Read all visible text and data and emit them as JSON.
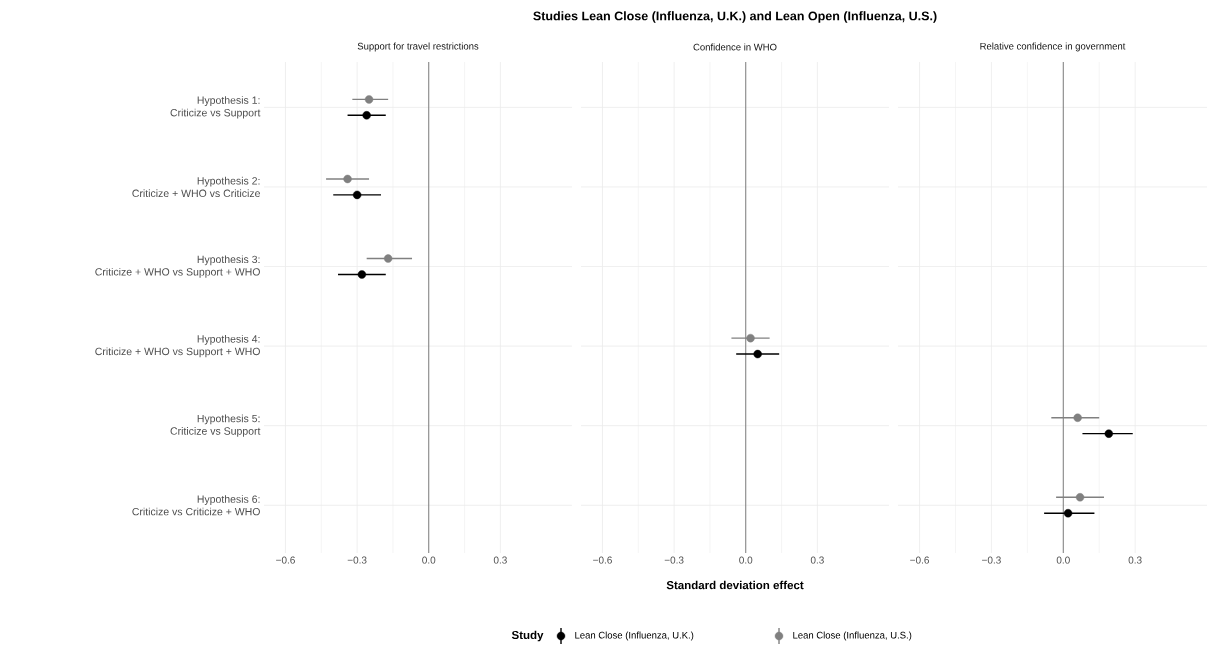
{
  "chart_data": [
    {
      "type": "scatter",
      "orientation": "horizontal",
      "subtitle": "Support for travel restrictions",
      "categories": [
        "Hypothesis 1:\nCriticize vs Support",
        "Hypothesis 2:\nCriticize + WHO vs Criticize",
        "Hypothesis 3:\nCriticize + WHO vs Support + WHO",
        "Hypothesis 4:\nCriticize + WHO vs Support + WHO",
        "Hypothesis 5:\nCriticize vs Support",
        "Hypothesis 6:\nCriticize vs Criticize + WHO"
      ],
      "series": [
        {
          "color": "#000000",
          "values": [
            -0.26,
            -0.3,
            -0.28,
            null,
            null,
            null
          ],
          "errors": [
            [
              -0.34,
              -0.18
            ],
            [
              -0.4,
              -0.2
            ],
            [
              -0.38,
              -0.18
            ],
            null,
            null,
            null
          ]
        },
        {
          "color": "#808080",
          "values": [
            -0.25,
            -0.34,
            -0.17,
            null,
            null,
            null
          ],
          "errors": [
            [
              -0.32,
              -0.17
            ],
            [
              -0.43,
              -0.25
            ],
            [
              -0.26,
              -0.07
            ],
            null,
            null,
            null
          ]
        }
      ],
      "xlim": [
        -0.69,
        0.6
      ],
      "xticks": [
        {
          "value": -0.6,
          "label": "−0.6"
        },
        {
          "value": -0.3,
          "label": "−0.3"
        },
        {
          "value": 0,
          "label": "0.0"
        },
        {
          "value": 0.3,
          "label": "0.3"
        }
      ],
      "ref_lines": [
        {
          "axis": "x",
          "value": 0,
          "color": "#333333"
        }
      ],
      "grid": true,
      "marker": "circle"
    },
    {
      "type": "scatter",
      "orientation": "horizontal",
      "title": "Studies Lean Close (Influenza, U.K.) and Lean Open (Influenza, U.S.)",
      "subtitle": "Confidence in WHO",
      "xlabel": "Standard deviation effect",
      "legend_title": "Study",
      "categories": [
        null,
        null,
        null,
        null,
        null,
        null
      ],
      "series": [
        {
          "name": "Lean Close (Influenza, U.K.)",
          "color": "#000000",
          "values": [
            null,
            null,
            null,
            0.05,
            null,
            null
          ],
          "errors": [
            null,
            null,
            null,
            [
              -0.04,
              0.14
            ],
            null,
            null
          ]
        },
        {
          "name": "Lean Close (Influenza, U.S.)",
          "color": "#808080",
          "values": [
            null,
            null,
            null,
            0.02,
            null,
            null
          ],
          "errors": [
            null,
            null,
            null,
            [
              -0.06,
              0.1
            ],
            null,
            null
          ]
        }
      ],
      "xlim": [
        -0.69,
        0.6
      ],
      "xticks": [
        {
          "value": -0.6,
          "label": "−0.6"
        },
        {
          "value": -0.3,
          "label": "−0.3"
        },
        {
          "value": 0,
          "label": "0.0"
        },
        {
          "value": 0.3,
          "label": "0.3"
        }
      ],
      "ref_lines": [
        {
          "axis": "x",
          "value": 0,
          "color": "#333333"
        }
      ],
      "grid": true,
      "marker": "circle",
      "legend": "bottom",
      "tick_labels": "x"
    },
    {
      "type": "scatter",
      "orientation": "horizontal",
      "subtitle": "Relative confidence in government",
      "categories": [
        null,
        null,
        null,
        null,
        null,
        null
      ],
      "series": [
        {
          "color": "#000000",
          "values": [
            null,
            null,
            null,
            null,
            0.19,
            0.02
          ],
          "errors": [
            null,
            null,
            null,
            null,
            [
              0.08,
              0.29
            ],
            [
              -0.08,
              0.13
            ]
          ]
        },
        {
          "color": "#808080",
          "values": [
            null,
            null,
            null,
            null,
            0.06,
            0.07
          ],
          "errors": [
            null,
            null,
            null,
            null,
            [
              -0.05,
              0.15
            ],
            [
              -0.03,
              0.17
            ]
          ]
        }
      ],
      "xlim": [
        -0.69,
        0.6
      ],
      "xticks": [
        {
          "value": -0.6,
          "label": "−0.6"
        },
        {
          "value": -0.3,
          "label": "−0.3"
        },
        {
          "value": 0,
          "label": "0.0"
        },
        {
          "value": 0.3,
          "label": "0.3"
        }
      ],
      "ref_lines": [
        {
          "axis": "x",
          "value": 0,
          "color": "#333333"
        }
      ],
      "grid": true,
      "marker": "circle",
      "tick_labels": "x"
    }
  ]
}
